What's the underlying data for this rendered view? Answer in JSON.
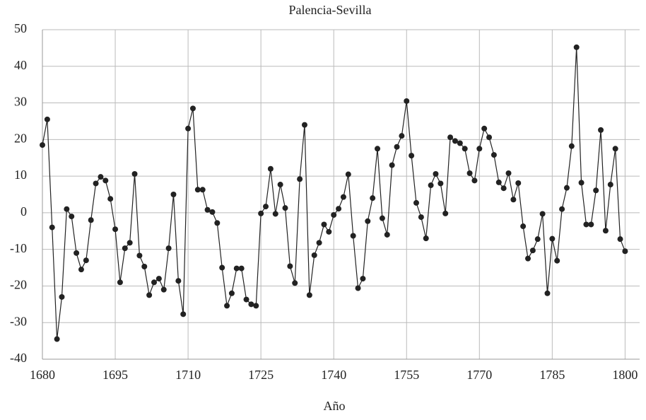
{
  "chart_data": {
    "type": "line",
    "title": "Palencia-Sevilla",
    "x_label": "Año",
    "x": [
      1680,
      1681,
      1682,
      1683,
      1684,
      1685,
      1686,
      1687,
      1688,
      1689,
      1690,
      1691,
      1692,
      1693,
      1694,
      1695,
      1696,
      1697,
      1698,
      1699,
      1700,
      1701,
      1702,
      1703,
      1704,
      1705,
      1706,
      1707,
      1708,
      1709,
      1710,
      1711,
      1712,
      1713,
      1714,
      1715,
      1716,
      1717,
      1718,
      1719,
      1720,
      1721,
      1722,
      1723,
      1724,
      1725,
      1726,
      1727,
      1728,
      1729,
      1730,
      1731,
      1732,
      1733,
      1734,
      1735,
      1736,
      1737,
      1738,
      1739,
      1740,
      1741,
      1742,
      1743,
      1744,
      1745,
      1746,
      1747,
      1748,
      1749,
      1750,
      1751,
      1752,
      1753,
      1754,
      1755,
      1756,
      1757,
      1758,
      1759,
      1760,
      1761,
      1762,
      1763,
      1764,
      1765,
      1766,
      1767,
      1768,
      1769,
      1770,
      1771,
      1772,
      1773,
      1774,
      1775,
      1776,
      1777,
      1778,
      1779,
      1780,
      1781,
      1782,
      1783,
      1784,
      1785,
      1786,
      1787,
      1788,
      1789,
      1790,
      1791,
      1792,
      1793,
      1794,
      1795,
      1796,
      1797,
      1798,
      1799,
      1800
    ],
    "series": [
      {
        "name": "Palencia-Sevilla",
        "color": "#222222",
        "values": [
          18.5,
          25.5,
          -4,
          -34.5,
          -23,
          1,
          -1,
          -11,
          -15.5,
          -13,
          -2,
          8,
          9.8,
          8.8,
          3.8,
          -4.5,
          -19,
          -9.7,
          -8.2,
          10.6,
          -11.7,
          -14.7,
          -22.5,
          -19,
          -18,
          -21,
          -9.7,
          5,
          -18.6,
          -27.7,
          23,
          28.5,
          6.3,
          6.3,
          0.8,
          0.2,
          -2.8,
          -15,
          -25.4,
          -22,
          -15.2,
          -15.2,
          -23.7,
          -25,
          -25.4,
          -0.2,
          1.7,
          12,
          -0.3,
          7.7,
          1.3,
          -14.6,
          -19.2,
          9.2,
          24,
          -22.5,
          -11.6,
          -8.2,
          -3.2,
          -5.2,
          -0.6,
          1.1,
          4.3,
          10.5,
          -6.3,
          -20.6,
          -18,
          -2.3,
          4,
          17.5,
          -1.5,
          -6,
          13,
          18,
          21,
          30.5,
          15.6,
          2.7,
          -1.2,
          -7,
          7.5,
          10.6,
          8,
          -0.2,
          20.6,
          19.6,
          19,
          17.5,
          10.8,
          8.8,
          17.5,
          23,
          20.6,
          15.8,
          8.3,
          6.7,
          10.8,
          3.6,
          8.1,
          -3.7,
          -12.5,
          -10.3,
          -7.2,
          -0.3,
          -22,
          -7.1,
          -13.1,
          1,
          6.8,
          18.2,
          45.2,
          8.2,
          -3.2,
          -3.2,
          6.1,
          22.6,
          -4.9,
          7.7,
          17.5,
          -7.2,
          -10.5
        ]
      }
    ],
    "xlim": [
      1680,
      1803
    ],
    "xticks": [
      1680,
      1695,
      1710,
      1725,
      1740,
      1755,
      1770,
      1785,
      1800
    ],
    "ylim": [
      -40,
      50
    ],
    "yticks": [
      -40,
      -30,
      -20,
      -10,
      0,
      10,
      20,
      30,
      40,
      50
    ],
    "grid": true
  }
}
